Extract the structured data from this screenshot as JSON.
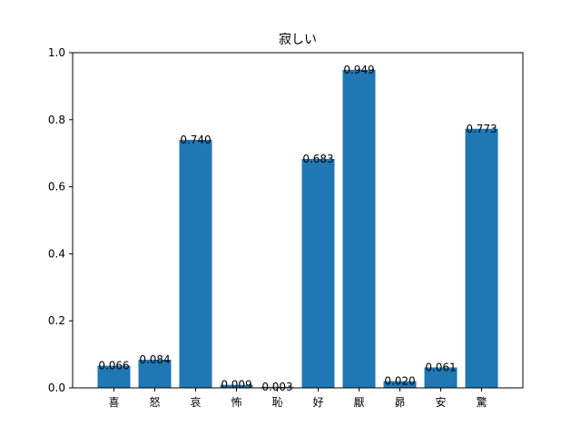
{
  "chart_data": {
    "type": "bar",
    "title": "寂しい",
    "xlabel": "",
    "ylabel": "",
    "categories": [
      "喜",
      "怒",
      "哀",
      "怖",
      "恥",
      "好",
      "厭",
      "昴",
      "安",
      "驚"
    ],
    "values": [
      0.066,
      0.084,
      0.74,
      0.009,
      0.003,
      0.683,
      0.949,
      0.02,
      0.061,
      0.773
    ],
    "value_labels": [
      "0.066",
      "0.084",
      "0.740",
      "0.009",
      "0.003",
      "0.683",
      "0.949",
      "0.020",
      "0.061",
      "0.773"
    ],
    "ylim": [
      0,
      1.0
    ],
    "yticks": [
      0.0,
      0.2,
      0.4,
      0.6,
      0.8,
      1.0
    ],
    "ytick_labels": [
      "0.0",
      "0.2",
      "0.4",
      "0.6",
      "0.8",
      "1.0"
    ],
    "bar_color": "#1f77b4",
    "grid": false,
    "legend": "none"
  }
}
